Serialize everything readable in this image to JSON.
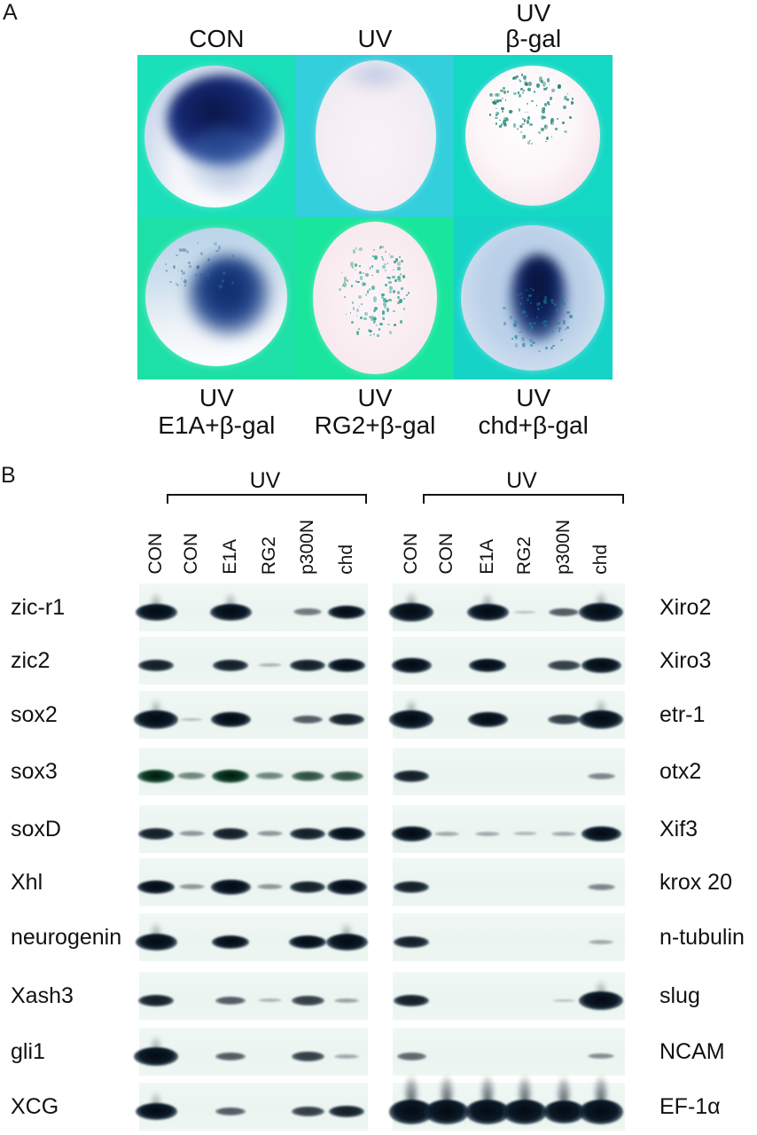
{
  "panel_a": {
    "label": "A",
    "columns": [
      {
        "top_lines": [
          "CON"
        ],
        "bottom_lines": [
          "UV",
          "E1A+β-gal"
        ]
      },
      {
        "top_lines": [
          "UV"
        ],
        "bottom_lines": [
          "UV",
          "RG2+β-gal"
        ]
      },
      {
        "top_lines": [
          "UV",
          "β-gal"
        ],
        "bottom_lines": [
          "UV",
          "chd+β-gal"
        ]
      }
    ],
    "embryos": [
      {
        "id": "con",
        "stain": "strong dark-blue dorsal staining"
      },
      {
        "id": "uv",
        "stain": "unstained pale embryo"
      },
      {
        "id": "uv-bgal",
        "stain": "teal beta-gal speckles only"
      },
      {
        "id": "uv-e1a-bgal",
        "stain": "central dark-blue staining with beta-gal speckles"
      },
      {
        "id": "uv-rg2-bgal",
        "stain": "beta-gal speckles only"
      },
      {
        "id": "uv-chd-bgal",
        "stain": "strong central dark-blue staining with beta-gal speckles"
      }
    ]
  },
  "panel_b": {
    "label": "B",
    "uv_label": "UV",
    "lane_labels": [
      "CON",
      "CON",
      "E1A",
      "RG2",
      "p300N",
      "chd"
    ],
    "rows": [
      {
        "left_label": "zic-r1",
        "right_label": "Xiro2",
        "left_bands": [
          4.5,
          0,
          4.5,
          0,
          1.5,
          3.5
        ],
        "right_bands": [
          5,
          0,
          4.5,
          0.3,
          2,
          5
        ]
      },
      {
        "left_label": "zic2",
        "right_label": "Xiro3",
        "left_bands": [
          3,
          0,
          3,
          0.5,
          3,
          3.5
        ],
        "right_bands": [
          4,
          0,
          3.5,
          0,
          2.5,
          4
        ]
      },
      {
        "left_label": "sox2",
        "right_label": "etr-1",
        "left_bands": [
          5,
          0.4,
          4,
          0,
          2,
          3
        ],
        "right_bands": [
          5,
          0,
          4,
          0,
          2.5,
          5
        ]
      },
      {
        "left_label": "sox3",
        "right_label": "otx2",
        "left_tint": "green",
        "left_bands": [
          3.5,
          1.5,
          3.5,
          1.5,
          2.5,
          2.5
        ],
        "right_bands": [
          3,
          0,
          0,
          0,
          0,
          1.3
        ]
      },
      {
        "left_label": "soxD",
        "right_label": "Xif3",
        "left_bands": [
          3,
          1,
          3,
          1,
          3,
          3.5
        ],
        "right_bands": [
          4,
          0.7,
          0.7,
          0.5,
          0.7,
          4
        ]
      },
      {
        "left_label": "Xhl",
        "right_label": "krox 20",
        "left_bands": [
          3.5,
          1,
          4,
          1,
          3,
          4
        ],
        "right_bands": [
          3,
          0,
          0,
          0,
          0,
          1.3
        ]
      },
      {
        "left_label": "neurogenin",
        "right_label": "n-tubulin",
        "left_bands": [
          4.5,
          0,
          3.5,
          0,
          3.5,
          4.5
        ],
        "right_bands": [
          3,
          0,
          0,
          0,
          0,
          0.7
        ]
      },
      {
        "left_label": "Xash3",
        "right_label": "slug",
        "left_bands": [
          3,
          0,
          2,
          0.5,
          2.5,
          0.8
        ],
        "right_bands": [
          3,
          0,
          0,
          0,
          0.3,
          5
        ]
      },
      {
        "left_label": "gli1",
        "right_label": "NCAM",
        "left_bands": [
          5,
          0,
          2,
          0,
          2.5,
          0.7
        ],
        "right_bands": [
          1.8,
          0,
          0,
          0,
          0,
          1.2
        ]
      },
      {
        "left_label": "XCG",
        "right_label": "EF-1α",
        "right_smear_all": true,
        "left_bands": [
          4.5,
          0,
          2,
          0,
          2.5,
          3
        ],
        "right_bands": [
          5,
          5,
          5,
          5,
          4.5,
          5
        ]
      }
    ]
  },
  "colors": {
    "tile_backgrounds": [
      "#19e0b8",
      "#33cfdc",
      "#13d8c4",
      "#1de0a6",
      "#19e59c",
      "#16d3c8"
    ],
    "band": "#0b1a28",
    "band_green": "#0e3d27",
    "speckle_teal": "#148a7a",
    "gel_strip": "#edf5f1"
  }
}
